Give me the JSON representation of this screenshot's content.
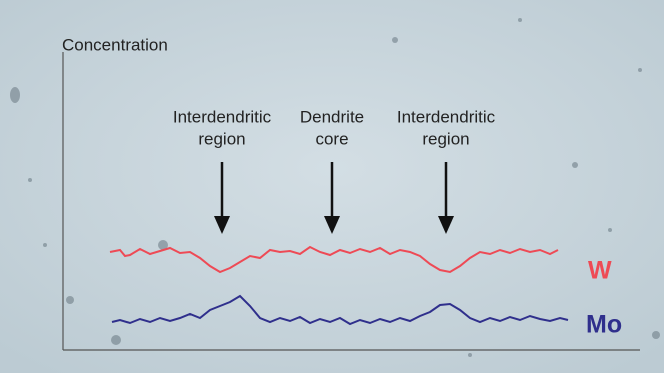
{
  "axis_label": "Concentration",
  "annotations": [
    {
      "lines": [
        "Interdendritic",
        "region"
      ]
    },
    {
      "lines": [
        "Dendrite",
        "core"
      ]
    },
    {
      "lines": [
        "Interdendritic",
        "region"
      ]
    }
  ],
  "traces": [
    {
      "label": "W"
    },
    {
      "label": "Mo"
    }
  ]
}
